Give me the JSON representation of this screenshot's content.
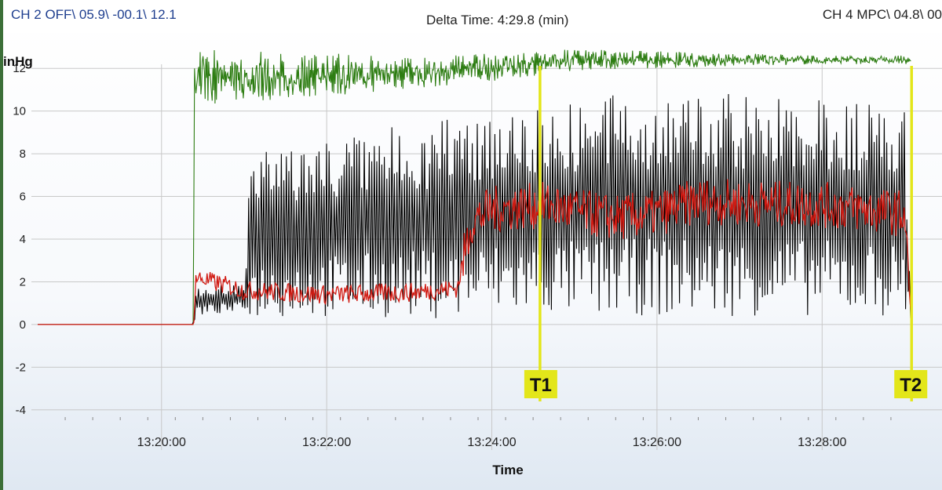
{
  "header": {
    "ch2": "CH 2 OFF\\ 05.9\\ -00.1\\ 12.1",
    "delta": "Delta Time: 4:29.8 (min)",
    "ch4": "CH 4 MPC\\ 04.8\\ 00"
  },
  "colors": {
    "green_series": "#2d7d12",
    "black_series": "#000000",
    "red_series": "#d11a12",
    "cursor": "#e3e61a",
    "grid": "#c8c8c8"
  },
  "chart_data": {
    "type": "line",
    "title": "",
    "xlabel": "Time",
    "ylabel": "inHg",
    "ylim": [
      -5,
      13
    ],
    "xlim": [
      "13:18:30",
      "13:29:10"
    ],
    "x_ticks": [
      "13:20:00",
      "13:22:00",
      "13:24:00",
      "13:26:00",
      "13:28:00"
    ],
    "y_ticks": [
      "-4",
      "-2",
      "0",
      "2",
      "4",
      "6",
      "8",
      "10",
      "12"
    ],
    "grid": true,
    "markers": [
      {
        "label": "T1",
        "time": "13:24:35"
      },
      {
        "label": "T2",
        "time": "13:29:05"
      }
    ],
    "series": [
      {
        "color": "green",
        "x": [
          "13:18:30",
          "13:20:23",
          "13:20:24",
          "13:21:00",
          "13:22:00",
          "13:23:00",
          "13:24:00",
          "13:25:00",
          "13:26:00",
          "13:27:00",
          "13:28:00",
          "13:29:00",
          "13:29:05"
        ],
        "y_min": [
          0,
          0,
          10.3,
          10.4,
          10.7,
          11.0,
          11.4,
          11.9,
          12.0,
          12.1,
          12.2,
          12.2,
          12.2
        ],
        "y_max": [
          0,
          0,
          12.9,
          12.8,
          12.7,
          12.6,
          12.7,
          12.9,
          12.8,
          12.7,
          12.6,
          12.6,
          12.6
        ]
      },
      {
        "color": "black",
        "x": [
          "13:18:30",
          "13:20:23",
          "13:20:25",
          "13:21:00",
          "13:21:05",
          "13:22:00",
          "13:23:00",
          "13:23:35",
          "13:24:00",
          "13:25:00",
          "13:26:00",
          "13:27:00",
          "13:28:00",
          "13:29:00",
          "13:29:05"
        ],
        "y_min": [
          0,
          0,
          0.4,
          0.6,
          0.3,
          0.3,
          0.3,
          0.3,
          0.4,
          0.4,
          0.4,
          0.4,
          0.4,
          0.4,
          0
        ],
        "y_max": [
          0,
          0,
          1.8,
          1.9,
          8.0,
          8.8,
          9.4,
          9.8,
          10.2,
          10.6,
          10.9,
          10.8,
          10.6,
          10.2,
          0
        ]
      },
      {
        "color": "red",
        "x": [
          "13:18:30",
          "13:20:23",
          "13:20:25",
          "13:21:00",
          "13:22:00",
          "13:23:00",
          "13:23:35",
          "13:23:45",
          "13:24:00",
          "13:24:40",
          "13:25:00",
          "13:25:30",
          "13:26:00",
          "13:26:30",
          "13:27:00",
          "13:28:00",
          "13:28:30",
          "13:29:00",
          "13:29:05"
        ],
        "y": [
          0,
          0,
          2.2,
          1.6,
          1.4,
          1.5,
          1.7,
          4.8,
          5.4,
          5.6,
          5.3,
          5.0,
          5.2,
          5.8,
          5.7,
          5.6,
          5.4,
          5.2,
          0
        ]
      }
    ]
  }
}
